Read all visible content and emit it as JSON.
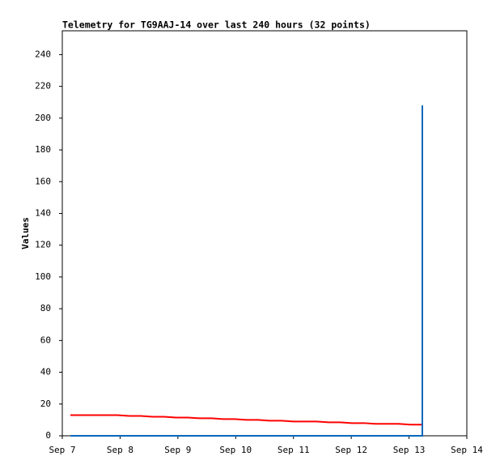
{
  "chart_data": {
    "type": "line",
    "title": "Telemetry for TG9AAJ-14 over last 240 hours (32 points)",
    "y_label": "Values",
    "x": [
      7.14,
      7.34,
      7.55,
      7.75,
      7.95,
      8.16,
      8.36,
      8.56,
      8.76,
      8.97,
      9.17,
      9.37,
      9.58,
      9.78,
      9.98,
      10.19,
      10.39,
      10.59,
      10.79,
      11.0,
      11.2,
      11.4,
      11.61,
      11.81,
      12.01,
      12.22,
      12.42,
      12.62,
      12.82,
      13.03,
      13.23,
      13.23
    ],
    "series": [
      {
        "color": "#000000",
        "values": [
          0,
          0,
          0,
          0,
          0,
          0,
          0,
          0,
          0,
          0,
          0,
          0,
          0,
          0,
          0,
          0,
          0,
          0,
          0,
          0,
          0,
          0,
          0,
          0,
          0,
          0,
          0,
          0,
          0,
          0,
          0,
          0
        ]
      },
      {
        "color": "#ff0000",
        "values": [
          13,
          13,
          13,
          13,
          13,
          12.5,
          12.5,
          12,
          12,
          11.5,
          11.5,
          11,
          11,
          10.5,
          10.5,
          10,
          10,
          9.5,
          9.5,
          9,
          9,
          9,
          8.5,
          8.5,
          8,
          8,
          7.5,
          7.5,
          7.5,
          7,
          7,
          7
        ]
      },
      {
        "color": "#0066bb",
        "values": [
          0,
          0,
          0,
          0,
          0,
          0,
          0,
          0,
          0,
          0,
          0,
          0,
          0,
          0,
          0,
          0,
          0,
          0,
          0,
          0,
          0,
          0,
          0,
          0,
          0,
          0,
          0,
          0,
          0,
          0,
          0,
          208
        ]
      }
    ],
    "xlim": [
      7,
      14
    ],
    "xticks": [
      {
        "value": 7,
        "label": "Sep 7"
      },
      {
        "value": 8,
        "label": "Sep 8"
      },
      {
        "value": 9,
        "label": "Sep 9"
      },
      {
        "value": 10,
        "label": "Sep 10"
      },
      {
        "value": 11,
        "label": "Sep 11"
      },
      {
        "value": 12,
        "label": "Sep 12"
      },
      {
        "value": 13,
        "label": "Sep 13"
      },
      {
        "value": 14,
        "label": "Sep 14"
      }
    ],
    "ylim": [
      0,
      255
    ],
    "yticks": [
      0,
      20,
      40,
      60,
      80,
      100,
      120,
      140,
      160,
      180,
      200,
      220,
      240
    ]
  }
}
